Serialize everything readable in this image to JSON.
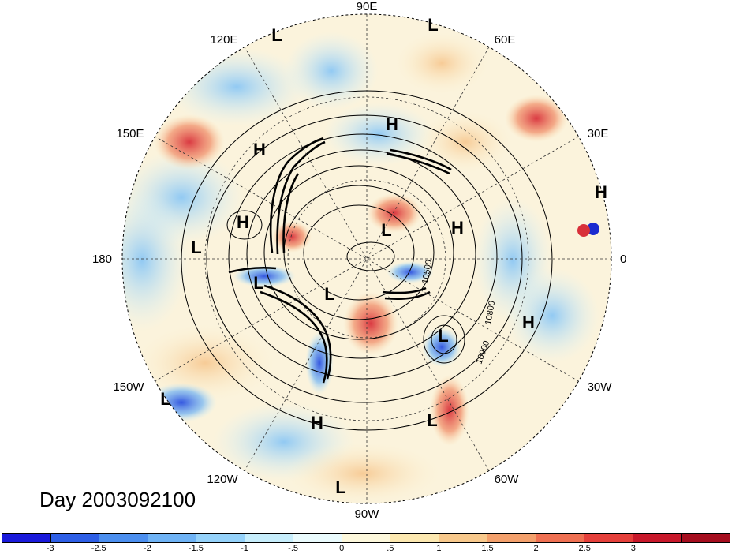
{
  "map": {
    "projection": "north-polar-stereographic",
    "longitude_labels": [
      {
        "text": "90E",
        "lon": 90
      },
      {
        "text": "60E",
        "lon": 60
      },
      {
        "text": "30E",
        "lon": 30
      },
      {
        "text": "0",
        "lon": 0
      },
      {
        "text": "30W",
        "lon": -30
      },
      {
        "text": "60W",
        "lon": -60
      },
      {
        "text": "90W",
        "lon": -90
      },
      {
        "text": "120W",
        "lon": -120
      },
      {
        "text": "150W",
        "lon": -150
      },
      {
        "text": "180",
        "lon": 180
      },
      {
        "text": "150E",
        "lon": 150
      },
      {
        "text": "120E",
        "lon": 120
      }
    ],
    "pressure_centers": [
      "L",
      "L",
      "H",
      "H",
      "H",
      "H",
      "L",
      "L",
      "L",
      "H",
      "L",
      "H",
      "L",
      "L",
      "H",
      "L",
      "L"
    ],
    "contour_labels": [
      "10500",
      "10800",
      "10900"
    ]
  },
  "title": {
    "day_label": "Day 2003092100"
  },
  "colorbar": {
    "colors": [
      "#1a1adb",
      "#2e5fe6",
      "#4c8fef",
      "#6fb3f5",
      "#95d2fa",
      "#c7eefc",
      "#eafbfd",
      "#fdf8dc",
      "#fce8b0",
      "#f8c98c",
      "#f3a06c",
      "#ef7052",
      "#e5403b",
      "#c8182a",
      "#a50d1e"
    ],
    "tick_labels": [
      "-3",
      "-2.5",
      "-2",
      "-1.5",
      "-1",
      "-.5",
      "0",
      ".5",
      "1",
      "1.5",
      "2",
      "2.5",
      "3"
    ]
  }
}
